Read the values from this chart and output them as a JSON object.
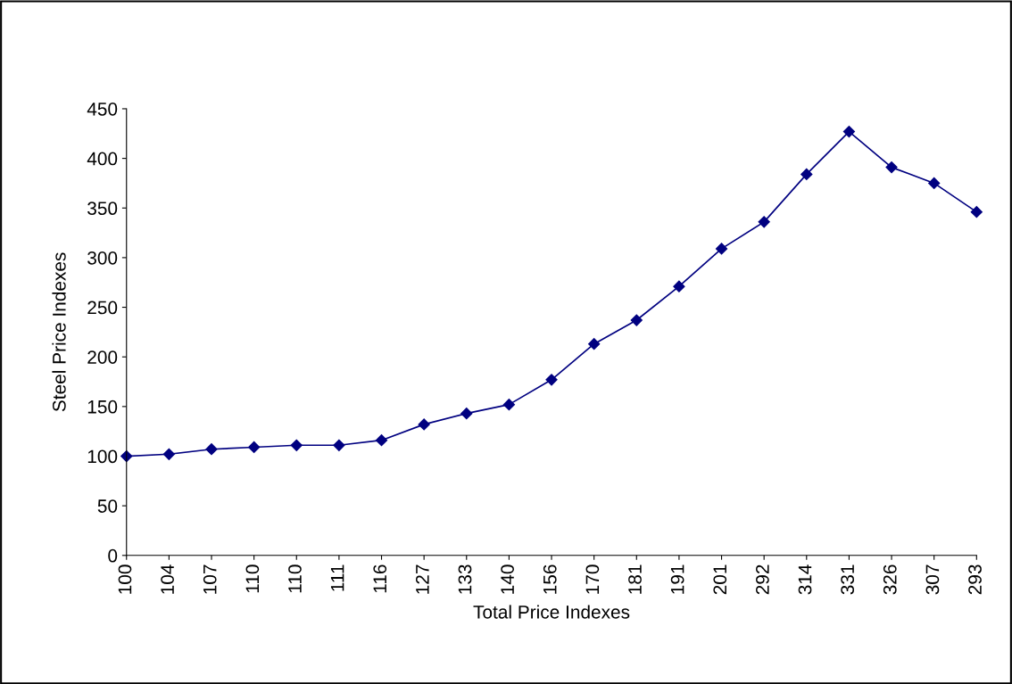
{
  "chart_data": {
    "type": "line",
    "xlabel": "Total Price Indexes",
    "ylabel": "Steel Price Indexes",
    "categories": [
      "100",
      "104",
      "107",
      "110",
      "110",
      "111",
      "116",
      "127",
      "133",
      "140",
      "156",
      "170",
      "181",
      "191",
      "201",
      "292",
      "314",
      "331",
      "326",
      "307",
      "293"
    ],
    "series": [
      {
        "color": "#000080",
        "values": [
          100,
          102,
          107,
          109,
          111,
          111,
          116,
          132,
          143,
          152,
          177,
          213,
          237,
          271,
          309,
          336,
          384,
          427,
          391,
          375,
          346
        ]
      }
    ],
    "ylim": [
      0,
      450
    ],
    "yticks": [
      0,
      50,
      100,
      150,
      200,
      250,
      300,
      350,
      400,
      450
    ],
    "grid": false,
    "marker": "diamond",
    "line_style": "solid"
  }
}
